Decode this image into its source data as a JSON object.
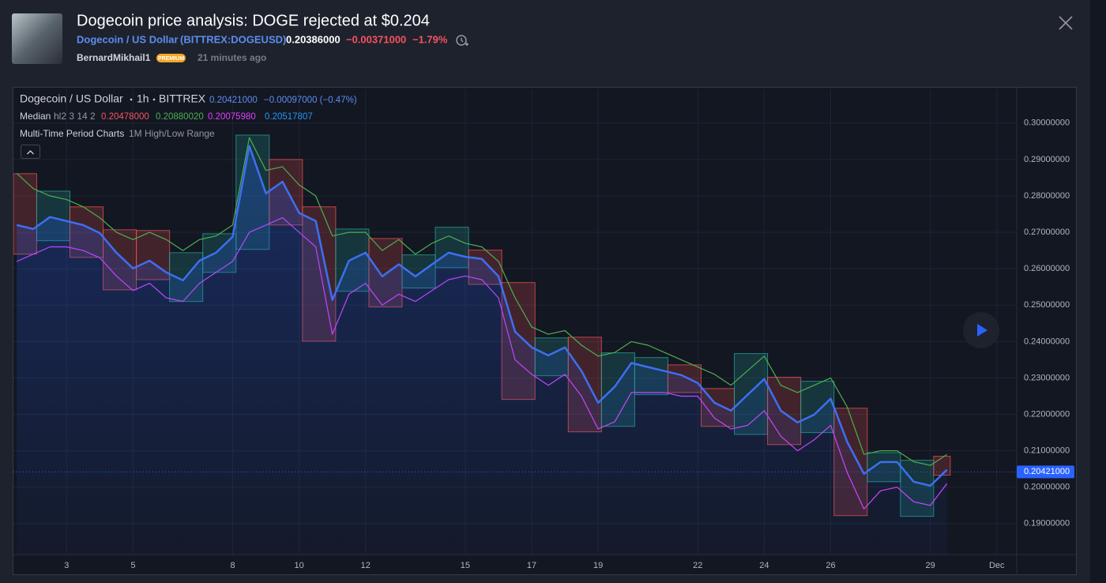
{
  "header": {
    "title": "Dogecoin price analysis: DOGE rejected at $0.204",
    "symbol_name": "Dogecoin / US Dollar",
    "symbol": "(BITTREX:DOGEUSD)",
    "price": "0.20386000",
    "change": "−0.00371000",
    "change_percent": "−1.79%",
    "author": "BernardMikhail1",
    "badge": "PREMIUM",
    "time": "21 minutes ago"
  },
  "legend": {
    "symbol_name": "Dogecoin / US Dollar",
    "interval": "1h",
    "exchange": "BITTREX",
    "price": "0.20421000",
    "change": "−0.00097000 (−0.47%)",
    "indicator": "Median",
    "indicator_params": "hl2 3 14 2",
    "indicator_values": [
      "0.20478000",
      "0.20880020",
      "0.20075980",
      "0.20517807"
    ],
    "indicator_colors": [
      "#f7525f",
      "#4caf50",
      "#e040fb",
      "#2196f3"
    ],
    "study": "Multi-Time Period Charts",
    "study_params": "1M High/Low Range"
  },
  "chart_data": {
    "type": "line",
    "x": [
      1.5,
      2,
      2.5,
      3,
      3.5,
      4,
      4.5,
      5,
      5.5,
      6,
      6.5,
      7,
      7.5,
      8,
      8.5,
      9,
      9.5,
      10,
      10.5,
      11,
      11.5,
      12,
      12.5,
      13,
      13.5,
      14,
      14.5,
      15,
      15.5,
      16,
      16.5,
      17,
      17.5,
      18,
      18.5,
      19,
      19.5,
      20,
      20.5,
      21,
      21.5,
      22,
      22.5,
      23,
      23.5,
      24,
      24.5,
      25,
      25.5,
      26,
      26.5,
      27,
      27.5,
      28,
      28.5,
      29,
      29.5
    ],
    "series": [
      {
        "color": "#e040fb",
        "values": [
          0.262,
          0.264,
          0.266,
          0.266,
          0.265,
          0.263,
          0.258,
          0.254,
          0.256,
          0.252,
          0.251,
          0.256,
          0.259,
          0.262,
          0.27,
          0.272,
          0.274,
          0.27,
          0.266,
          0.242,
          0.253,
          0.256,
          0.25,
          0.253,
          0.251,
          0.254,
          0.257,
          0.258,
          0.257,
          0.252,
          0.235,
          0.231,
          0.228,
          0.231,
          0.225,
          0.216,
          0.218,
          0.226,
          0.226,
          0.226,
          0.225,
          0.225,
          0.219,
          0.216,
          0.217,
          0.221,
          0.214,
          0.21,
          0.213,
          0.217,
          0.204,
          0.194,
          0.199,
          0.2,
          0.196,
          0.195,
          0.201
        ]
      },
      {
        "color": "#4caf50",
        "values": [
          0.2862,
          0.282,
          0.28,
          0.279,
          0.277,
          0.274,
          0.27,
          0.268,
          0.27,
          0.268,
          0.265,
          0.268,
          0.269,
          0.272,
          0.296,
          0.287,
          0.288,
          0.283,
          0.28,
          0.269,
          0.27,
          0.27,
          0.265,
          0.268,
          0.264,
          0.267,
          0.269,
          0.267,
          0.266,
          0.262,
          0.252,
          0.244,
          0.242,
          0.243,
          0.239,
          0.236,
          0.237,
          0.24,
          0.239,
          0.237,
          0.235,
          0.233,
          0.231,
          0.228,
          0.232,
          0.236,
          0.228,
          0.226,
          0.228,
          0.23,
          0.222,
          0.209,
          0.21,
          0.21,
          0.207,
          0.206,
          0.209
        ]
      },
      {
        "color": "#3d6ff0",
        "values": [
          0.272,
          0.2709,
          0.2742,
          0.2731,
          0.272,
          0.2698,
          0.2644,
          0.2601,
          0.2622,
          0.259,
          0.2568,
          0.2622,
          0.2644,
          0.2688,
          0.2937,
          0.2807,
          0.2839,
          0.2753,
          0.2731,
          0.2514,
          0.2622,
          0.2644,
          0.2579,
          0.2612,
          0.2579,
          0.2612,
          0.2644,
          0.2633,
          0.2627,
          0.2579,
          0.2427,
          0.2384,
          0.2362,
          0.2384,
          0.2319,
          0.2232,
          0.2276,
          0.2341,
          0.233,
          0.2319,
          0.2308,
          0.2286,
          0.2232,
          0.221,
          0.2254,
          0.2297,
          0.221,
          0.2178,
          0.2199,
          0.2243,
          0.2124,
          0.2037,
          0.2069,
          0.2069,
          0.2015,
          0.2004,
          0.2048
        ]
      }
    ],
    "boxes": {
      "x0": [
        1.4,
        2.1,
        3.1,
        4.1,
        5.1,
        6.1,
        7.1,
        8.1,
        9.1,
        10.1,
        11.1,
        12.1,
        13.1,
        14.1,
        15.1,
        16.1,
        17.1,
        18.1,
        19.1,
        20.1,
        21.1,
        22.1,
        23.1,
        24.1,
        25.1,
        26.1,
        27.1,
        28.1,
        29.1
      ],
      "x1": [
        2.1,
        3.1,
        4.1,
        5.1,
        6.1,
        7.1,
        8.1,
        9.1,
        10.1,
        11.1,
        12.1,
        13.1,
        14.1,
        15.1,
        16.1,
        17.1,
        18.1,
        19.1,
        20.1,
        21.1,
        22.1,
        23.1,
        24.1,
        25.1,
        26.1,
        27.1,
        28.1,
        29.1,
        29.6
      ],
      "high": [
        0.2861,
        0.2813,
        0.277,
        0.2707,
        0.2705,
        0.2644,
        0.2696,
        0.2967,
        0.29,
        0.277,
        0.2709,
        0.2683,
        0.2638,
        0.2714,
        0.2651,
        0.2562,
        0.241,
        0.2412,
        0.2369,
        0.2356,
        0.2336,
        0.2271,
        0.2367,
        0.2302,
        0.2291,
        0.2217,
        0.2095,
        0.2074,
        0.2085
      ],
      "low": [
        0.264,
        0.2677,
        0.2631,
        0.2542,
        0.257,
        0.251,
        0.259,
        0.2653,
        0.272,
        0.2401,
        0.2538,
        0.2495,
        0.2547,
        0.2603,
        0.2557,
        0.2241,
        0.2306,
        0.2152,
        0.2167,
        0.2254,
        0.226,
        0.2167,
        0.2145,
        0.2117,
        0.215,
        0.1922,
        0.2015,
        0.192,
        0.2033
      ],
      "colors": [
        "#ef5350",
        "#26a69a",
        "#ef5350",
        "#ef5350",
        "#ef5350",
        "#26a69a",
        "#26a69a",
        "#26a69a",
        "#ef5350",
        "#ef5350",
        "#26a69a",
        "#ef5350",
        "#26a69a",
        "#26a69a",
        "#ef5350",
        "#ef5350",
        "#26a69a",
        "#ef5350",
        "#26a69a",
        "#26a69a",
        "#ef5350",
        "#ef5350",
        "#26a69a",
        "#ef5350",
        "#26a69a",
        "#ef5350",
        "#26a69a",
        "#26a69a",
        "#ef5350"
      ]
    },
    "last_price": {
      "value": 0.20421,
      "label": "0.20421000"
    },
    "xlim": [
      1.4,
      31.6
    ],
    "ylim": [
      0.1815,
      0.3095
    ],
    "xticks": [
      3,
      5,
      8,
      10,
      12,
      15,
      17,
      19,
      22,
      24,
      26,
      29,
      {
        "value": 31,
        "label": "Dec"
      }
    ],
    "yticks": [
      {
        "value": 0.19,
        "label": "0.19000000"
      },
      {
        "value": 0.2,
        "label": "0.20000000"
      },
      {
        "value": 0.21,
        "label": "0.21000000"
      },
      {
        "value": 0.22,
        "label": "0.22000000"
      },
      {
        "value": 0.23,
        "label": "0.23000000"
      },
      {
        "value": 0.24,
        "label": "0.24000000"
      },
      {
        "value": 0.25,
        "label": "0.25000000"
      },
      {
        "value": 0.26,
        "label": "0.26000000"
      },
      {
        "value": 0.27,
        "label": "0.27000000"
      },
      {
        "value": 0.28,
        "label": "0.28000000"
      },
      {
        "value": 0.29,
        "label": "0.29000000"
      },
      {
        "value": 0.3,
        "label": "0.30000000"
      }
    ],
    "grid": true
  }
}
